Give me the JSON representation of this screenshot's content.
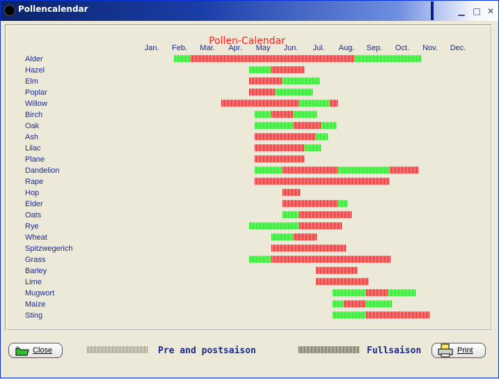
{
  "window": {
    "title": "Pollencalendar",
    "min": "▁",
    "max": "□",
    "close": "✕"
  },
  "chart_data": {
    "type": "bar",
    "title": "Pollen-Calendar",
    "months": [
      "Jan.",
      "Feb.",
      "Mar.",
      "Apr.",
      "May",
      "Jun.",
      "Jul.",
      "Aug.",
      "Sep.",
      "Oct.",
      "Nov.",
      "Dec."
    ],
    "colors": {
      "pre_post": "#22dd22",
      "full": "#dd1111"
    },
    "series": [
      {
        "name": "Alder",
        "segments": [
          [
            1.3,
            1.9,
            "pre_post"
          ],
          [
            1.9,
            7.8,
            "full"
          ],
          [
            7.8,
            10.2,
            "pre_post"
          ]
        ]
      },
      {
        "name": "Hazel",
        "segments": [
          [
            4.0,
            4.8,
            "pre_post"
          ],
          [
            4.8,
            6.0,
            "full"
          ]
        ]
      },
      {
        "name": "Elm",
        "segments": [
          [
            4.0,
            5.2,
            "full"
          ],
          [
            5.2,
            6.55,
            "pre_post"
          ]
        ]
      },
      {
        "name": "Poplar",
        "segments": [
          [
            4.0,
            4.95,
            "full"
          ],
          [
            4.95,
            6.3,
            "pre_post"
          ]
        ]
      },
      {
        "name": "Willow",
        "segments": [
          [
            3.0,
            5.8,
            "full"
          ],
          [
            5.8,
            6.9,
            "pre_post"
          ],
          [
            6.9,
            7.2,
            "full"
          ]
        ]
      },
      {
        "name": "Birch",
        "segments": [
          [
            4.2,
            4.8,
            "pre_post"
          ],
          [
            4.8,
            5.6,
            "full"
          ],
          [
            5.6,
            6.45,
            "pre_post"
          ]
        ]
      },
      {
        "name": "Oak",
        "segments": [
          [
            4.2,
            5.6,
            "pre_post"
          ],
          [
            5.6,
            6.6,
            "full"
          ],
          [
            6.6,
            7.15,
            "pre_post"
          ]
        ]
      },
      {
        "name": "Ash",
        "segments": [
          [
            4.2,
            6.4,
            "full"
          ],
          [
            6.4,
            6.85,
            "pre_post"
          ]
        ]
      },
      {
        "name": "Lilac",
        "segments": [
          [
            4.2,
            6.0,
            "full"
          ],
          [
            6.0,
            6.6,
            "pre_post"
          ]
        ]
      },
      {
        "name": "Plane",
        "segments": [
          [
            4.2,
            6.0,
            "full"
          ]
        ]
      },
      {
        "name": "Dandelion",
        "segments": [
          [
            4.2,
            5.2,
            "pre_post"
          ],
          [
            5.2,
            7.2,
            "full"
          ],
          [
            7.2,
            9.05,
            "pre_post"
          ],
          [
            9.05,
            10.1,
            "full"
          ]
        ]
      },
      {
        "name": "Rape",
        "segments": [
          [
            4.2,
            9.05,
            "full"
          ]
        ]
      },
      {
        "name": "Hop",
        "segments": [
          [
            5.2,
            5.85,
            "full"
          ]
        ]
      },
      {
        "name": "Elder",
        "segments": [
          [
            5.2,
            7.2,
            "full"
          ],
          [
            7.2,
            7.55,
            "pre_post"
          ]
        ]
      },
      {
        "name": "Oats",
        "segments": [
          [
            5.2,
            5.8,
            "pre_post"
          ],
          [
            5.8,
            7.7,
            "full"
          ]
        ]
      },
      {
        "name": "Rye",
        "segments": [
          [
            4.0,
            5.8,
            "pre_post"
          ],
          [
            5.8,
            7.35,
            "full"
          ]
        ]
      },
      {
        "name": "Wheat",
        "segments": [
          [
            4.8,
            5.6,
            "pre_post"
          ],
          [
            5.6,
            6.45,
            "full"
          ]
        ]
      },
      {
        "name": "Spitzwegerich",
        "segments": [
          [
            4.8,
            7.5,
            "full"
          ]
        ]
      },
      {
        "name": "Grass",
        "segments": [
          [
            4.0,
            4.8,
            "pre_post"
          ],
          [
            4.8,
            9.1,
            "full"
          ]
        ]
      },
      {
        "name": "Barley",
        "segments": [
          [
            6.4,
            7.9,
            "full"
          ]
        ]
      },
      {
        "name": "Lime",
        "segments": [
          [
            6.4,
            8.3,
            "full"
          ]
        ]
      },
      {
        "name": "Mugwort",
        "segments": [
          [
            7.0,
            8.2,
            "pre_post"
          ],
          [
            8.2,
            9.0,
            "full"
          ],
          [
            9.0,
            10.0,
            "pre_post"
          ]
        ]
      },
      {
        "name": "Maize",
        "segments": [
          [
            7.0,
            7.4,
            "pre_post"
          ],
          [
            7.4,
            8.2,
            "full"
          ],
          [
            8.2,
            9.15,
            "pre_post"
          ]
        ]
      },
      {
        "name": "Sting",
        "segments": [
          [
            7.0,
            8.2,
            "pre_post"
          ],
          [
            8.2,
            10.5,
            "full"
          ]
        ]
      }
    ]
  },
  "footer": {
    "close_label": "Close",
    "print_label": "Print",
    "legend_pre_post": "Pre and postsaison",
    "legend_full": "Fullsaison"
  }
}
